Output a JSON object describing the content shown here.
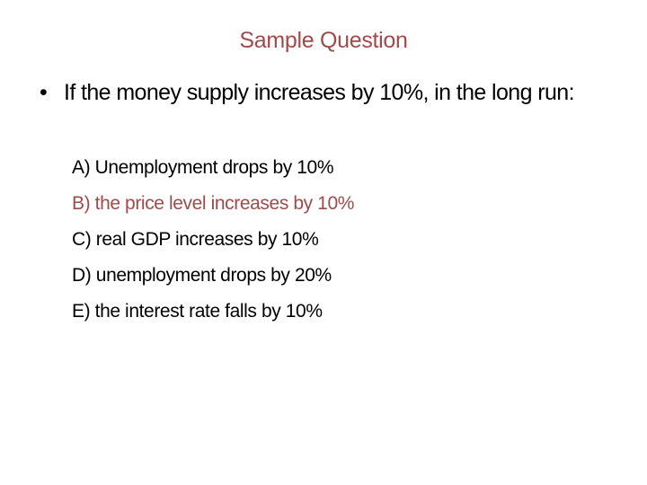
{
  "slide": {
    "title": "Sample Question",
    "bullet_icon": "•",
    "question": "If the money supply increases by 10%, in the long run:",
    "options": [
      {
        "label": "A) Unemployment drops by 10%",
        "highlighted": false
      },
      {
        "label": "B) the price level increases by 10%",
        "highlighted": true
      },
      {
        "label": "C) real GDP increases by 10%",
        "highlighted": false
      },
      {
        "label": "D) unemployment drops by 20%",
        "highlighted": false
      },
      {
        "label": "E) the interest rate falls by 10%",
        "highlighted": false
      }
    ],
    "colors": {
      "accent": "#a04a4a",
      "text": "#000000",
      "background": "#ffffff"
    }
  }
}
